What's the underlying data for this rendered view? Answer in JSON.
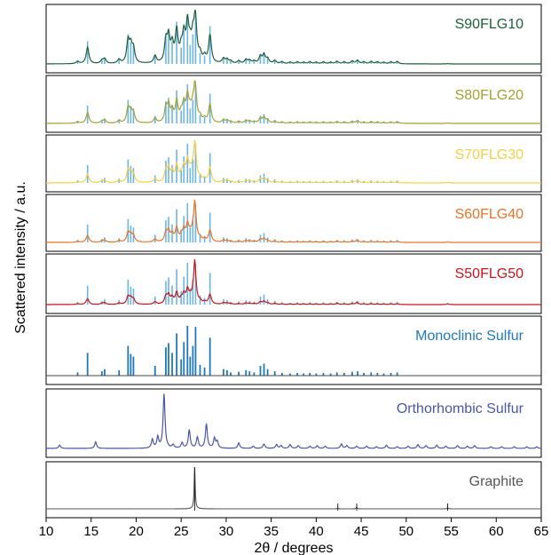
{
  "chart_data": {
    "type": "line",
    "xlabel": "2θ / degrees",
    "ylabel": "Scattered intensity / a.u.",
    "xlim": [
      10,
      65
    ],
    "x_ticks": [
      10,
      15,
      20,
      25,
      30,
      35,
      40,
      45,
      50,
      55,
      60,
      65
    ],
    "x_tick_labels": [
      "10",
      "15",
      "20",
      "25",
      "30",
      "35",
      "40",
      "45",
      "50",
      "55",
      "60",
      "65"
    ],
    "panels": [
      {
        "name": "S90FLG10",
        "color": "#1f5f3a",
        "kind": "composite",
        "graphite_weight": 0.1
      },
      {
        "name": "S80FLG20",
        "color": "#a3a136",
        "kind": "composite",
        "graphite_weight": 0.2
      },
      {
        "name": "S70FLG30",
        "color": "#f2d04b",
        "kind": "composite",
        "graphite_weight": 0.3
      },
      {
        "name": "S60FLG40",
        "color": "#e8732a",
        "kind": "composite",
        "graphite_weight": 0.4
      },
      {
        "name": "S50FLG50",
        "color": "#c8151d",
        "kind": "composite",
        "graphite_weight": 0.5
      },
      {
        "name": "Monoclinic Sulfur",
        "color": "#1f78b9",
        "kind": "sticks"
      },
      {
        "name": "Orthorhombic Sulfur",
        "color": "#4a57a6",
        "kind": "pattern"
      },
      {
        "name": "Graphite",
        "color": "#555555",
        "kind": "graphite"
      }
    ],
    "reference_stick_color": "#6cb6e0",
    "monoclinic_sulfur_peaks": [
      {
        "x": 13.5,
        "y": 0.06
      },
      {
        "x": 14.6,
        "y": 0.42
      },
      {
        "x": 16.2,
        "y": 0.08
      },
      {
        "x": 16.5,
        "y": 0.12
      },
      {
        "x": 18.1,
        "y": 0.1
      },
      {
        "x": 19.1,
        "y": 0.55
      },
      {
        "x": 19.4,
        "y": 0.4
      },
      {
        "x": 19.7,
        "y": 0.35
      },
      {
        "x": 22.1,
        "y": 0.18
      },
      {
        "x": 23.3,
        "y": 0.52
      },
      {
        "x": 23.6,
        "y": 0.6
      },
      {
        "x": 24.0,
        "y": 0.42
      },
      {
        "x": 24.5,
        "y": 0.78
      },
      {
        "x": 25.0,
        "y": 0.3
      },
      {
        "x": 25.3,
        "y": 0.62
      },
      {
        "x": 25.7,
        "y": 0.92
      },
      {
        "x": 26.0,
        "y": 0.35
      },
      {
        "x": 26.3,
        "y": 0.55
      },
      {
        "x": 26.6,
        "y": 0.9
      },
      {
        "x": 27.1,
        "y": 0.2
      },
      {
        "x": 27.6,
        "y": 0.15
      },
      {
        "x": 28.2,
        "y": 0.7
      },
      {
        "x": 29.7,
        "y": 0.12
      },
      {
        "x": 30.1,
        "y": 0.1
      },
      {
        "x": 30.5,
        "y": 0.06
      },
      {
        "x": 31.4,
        "y": 0.07
      },
      {
        "x": 32.2,
        "y": 0.1
      },
      {
        "x": 32.6,
        "y": 0.08
      },
      {
        "x": 33.1,
        "y": 0.06
      },
      {
        "x": 33.8,
        "y": 0.18
      },
      {
        "x": 34.2,
        "y": 0.22
      },
      {
        "x": 34.6,
        "y": 0.12
      },
      {
        "x": 35.4,
        "y": 0.08
      },
      {
        "x": 36.2,
        "y": 0.05
      },
      {
        "x": 37.1,
        "y": 0.04
      },
      {
        "x": 37.9,
        "y": 0.05
      },
      {
        "x": 38.6,
        "y": 0.04
      },
      {
        "x": 39.3,
        "y": 0.05
      },
      {
        "x": 40.0,
        "y": 0.04
      },
      {
        "x": 40.8,
        "y": 0.05
      },
      {
        "x": 41.6,
        "y": 0.04
      },
      {
        "x": 42.3,
        "y": 0.06
      },
      {
        "x": 43.1,
        "y": 0.05
      },
      {
        "x": 44.0,
        "y": 0.07
      },
      {
        "x": 44.6,
        "y": 0.08
      },
      {
        "x": 45.3,
        "y": 0.05
      },
      {
        "x": 46.1,
        "y": 0.06
      },
      {
        "x": 46.8,
        "y": 0.05
      },
      {
        "x": 47.5,
        "y": 0.04
      },
      {
        "x": 48.3,
        "y": 0.05
      },
      {
        "x": 49.0,
        "y": 0.06
      }
    ],
    "orthorhombic_sulfur_peaks": [
      {
        "x": 11.5,
        "y": 0.06
      },
      {
        "x": 15.5,
        "y": 0.12
      },
      {
        "x": 21.8,
        "y": 0.16
      },
      {
        "x": 22.4,
        "y": 0.2
      },
      {
        "x": 23.1,
        "y": 1.0
      },
      {
        "x": 24.1,
        "y": 0.06
      },
      {
        "x": 25.1,
        "y": 0.1
      },
      {
        "x": 25.9,
        "y": 0.34
      },
      {
        "x": 26.8,
        "y": 0.2
      },
      {
        "x": 27.8,
        "y": 0.45
      },
      {
        "x": 28.7,
        "y": 0.18
      },
      {
        "x": 29.0,
        "y": 0.12
      },
      {
        "x": 31.4,
        "y": 0.1
      },
      {
        "x": 33.0,
        "y": 0.04
      },
      {
        "x": 34.2,
        "y": 0.08
      },
      {
        "x": 35.6,
        "y": 0.07
      },
      {
        "x": 36.1,
        "y": 0.05
      },
      {
        "x": 37.1,
        "y": 0.07
      },
      {
        "x": 38.0,
        "y": 0.05
      },
      {
        "x": 39.3,
        "y": 0.04
      },
      {
        "x": 40.1,
        "y": 0.05
      },
      {
        "x": 41.0,
        "y": 0.04
      },
      {
        "x": 42.8,
        "y": 0.08
      },
      {
        "x": 43.4,
        "y": 0.05
      },
      {
        "x": 44.5,
        "y": 0.04
      },
      {
        "x": 45.6,
        "y": 0.04
      },
      {
        "x": 46.7,
        "y": 0.03
      },
      {
        "x": 47.8,
        "y": 0.06
      },
      {
        "x": 49.0,
        "y": 0.03
      },
      {
        "x": 50.2,
        "y": 0.04
      },
      {
        "x": 51.3,
        "y": 0.07
      },
      {
        "x": 52.2,
        "y": 0.05
      },
      {
        "x": 53.4,
        "y": 0.06
      },
      {
        "x": 54.4,
        "y": 0.04
      },
      {
        "x": 55.7,
        "y": 0.05
      },
      {
        "x": 56.8,
        "y": 0.04
      },
      {
        "x": 57.6,
        "y": 0.05
      },
      {
        "x": 59.4,
        "y": 0.03
      },
      {
        "x": 60.6,
        "y": 0.03
      },
      {
        "x": 62.0,
        "y": 0.03
      },
      {
        "x": 63.4,
        "y": 0.03
      },
      {
        "x": 64.5,
        "y": 0.03
      }
    ],
    "graphite_peaks": [
      {
        "x": 26.5,
        "y": 1.0
      },
      {
        "x": 42.4,
        "y": 0.02
      },
      {
        "x": 44.5,
        "y": 0.04
      },
      {
        "x": 54.6,
        "y": 0.03
      }
    ]
  }
}
